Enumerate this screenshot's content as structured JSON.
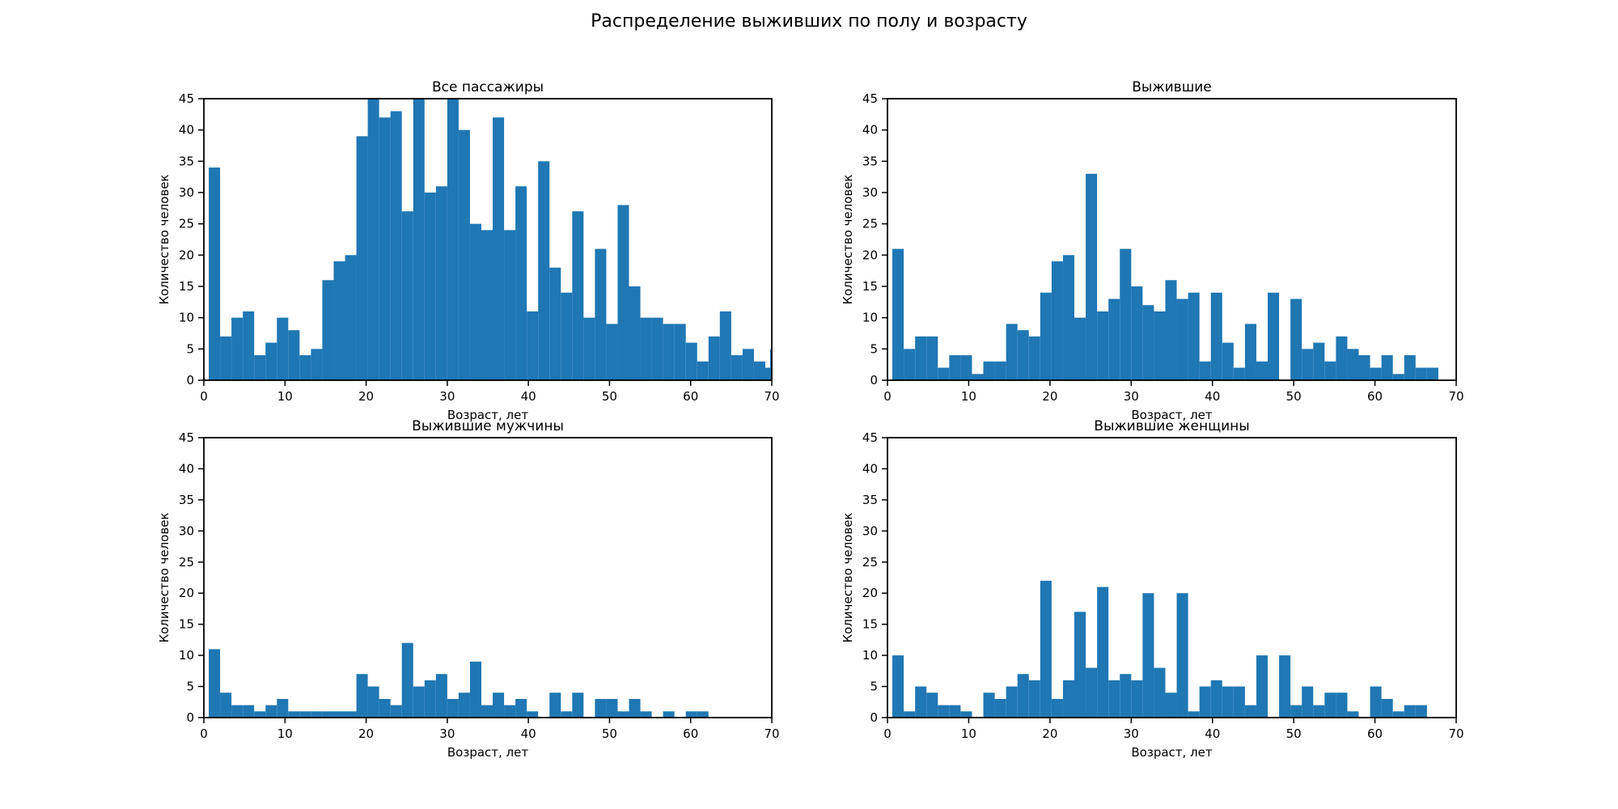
{
  "figure": {
    "suptitle": "Распределение выживших по полу и возрасту",
    "background": "#ffffff",
    "bar_color": "#1f77b4",
    "axis_color": "#000000"
  },
  "chart_data": [
    {
      "type": "bar",
      "title": "Все пассажиры",
      "xlabel": "Возраст, лет",
      "ylabel": "Количество человек",
      "xlim": [
        0,
        70
      ],
      "ylim": [
        0,
        45
      ],
      "xticks": [
        0,
        10,
        20,
        30,
        40,
        50,
        60,
        70
      ],
      "yticks": [
        0,
        5,
        10,
        15,
        20,
        25,
        30,
        35,
        40,
        45
      ],
      "grid": false,
      "legend": false,
      "bin_start": 0.6,
      "bin_width": 1.4,
      "values": [
        34,
        7,
        10,
        11,
        4,
        6,
        10,
        8,
        4,
        5,
        16,
        19,
        20,
        39,
        45,
        42,
        43,
        27,
        45,
        30,
        31,
        45,
        40,
        25,
        24,
        42,
        24,
        31,
        11,
        35,
        18,
        14,
        27,
        10,
        21,
        9,
        28,
        15,
        10,
        10,
        9,
        9,
        6,
        3,
        7,
        11,
        4,
        5,
        3,
        2
      ],
      "edge_bar": {
        "age": 69.8,
        "value": 5
      }
    },
    {
      "type": "bar",
      "title": "Выжившие",
      "xlabel": "Возраст, лет",
      "ylabel": "Количество человек",
      "xlim": [
        0,
        70
      ],
      "ylim": [
        0,
        45
      ],
      "xticks": [
        0,
        10,
        20,
        30,
        40,
        50,
        60,
        70
      ],
      "yticks": [
        0,
        5,
        10,
        15,
        20,
        25,
        30,
        35,
        40,
        45
      ],
      "grid": false,
      "legend": false,
      "bin_start": 0.6,
      "bin_width": 1.4,
      "values": [
        21,
        5,
        7,
        7,
        2,
        4,
        4,
        1,
        3,
        3,
        9,
        8,
        7,
        14,
        19,
        20,
        10,
        33,
        11,
        13,
        21,
        15,
        12,
        11,
        16,
        13,
        14,
        3,
        14,
        6,
        2,
        9,
        3,
        14,
        0,
        13,
        5,
        6,
        3,
        7,
        5,
        4,
        2,
        4,
        1,
        4,
        2,
        2,
        0,
        0
      ]
    },
    {
      "type": "bar",
      "title": "Выжившие мужчины",
      "xlabel": "Возраст, лет",
      "ylabel": "Количество человек",
      "xlim": [
        0,
        70
      ],
      "ylim": [
        0,
        45
      ],
      "xticks": [
        0,
        10,
        20,
        30,
        40,
        50,
        60,
        70
      ],
      "yticks": [
        0,
        5,
        10,
        15,
        20,
        25,
        30,
        35,
        40,
        45
      ],
      "grid": false,
      "legend": false,
      "bin_start": 0.6,
      "bin_width": 1.4,
      "values": [
        11,
        4,
        2,
        2,
        1,
        2,
        3,
        1,
        1,
        1,
        1,
        1,
        1,
        7,
        5,
        3,
        2,
        12,
        5,
        6,
        7,
        3,
        4,
        9,
        2,
        4,
        2,
        3,
        1,
        0,
        4,
        1,
        4,
        0,
        3,
        3,
        1,
        3,
        1,
        0,
        1,
        0,
        1,
        1,
        0,
        0,
        0,
        0,
        0,
        0
      ]
    },
    {
      "type": "bar",
      "title": "Выжившие женщины",
      "xlabel": "Возраст, лет",
      "ylabel": "Количество человек",
      "xlim": [
        0,
        70
      ],
      "ylim": [
        0,
        45
      ],
      "xticks": [
        0,
        10,
        20,
        30,
        40,
        50,
        60,
        70
      ],
      "yticks": [
        0,
        5,
        10,
        15,
        20,
        25,
        30,
        35,
        40,
        45
      ],
      "grid": false,
      "legend": false,
      "bin_start": 0.6,
      "bin_width": 1.4,
      "values": [
        10,
        1,
        5,
        4,
        2,
        2,
        1,
        0,
        4,
        3,
        5,
        7,
        6,
        22,
        3,
        6,
        17,
        8,
        21,
        6,
        7,
        6,
        20,
        8,
        4,
        20,
        1,
        5,
        6,
        5,
        5,
        2,
        10,
        0,
        10,
        2,
        5,
        2,
        4,
        4,
        1,
        0,
        5,
        3,
        1,
        2,
        2,
        0,
        0,
        0
      ]
    }
  ]
}
